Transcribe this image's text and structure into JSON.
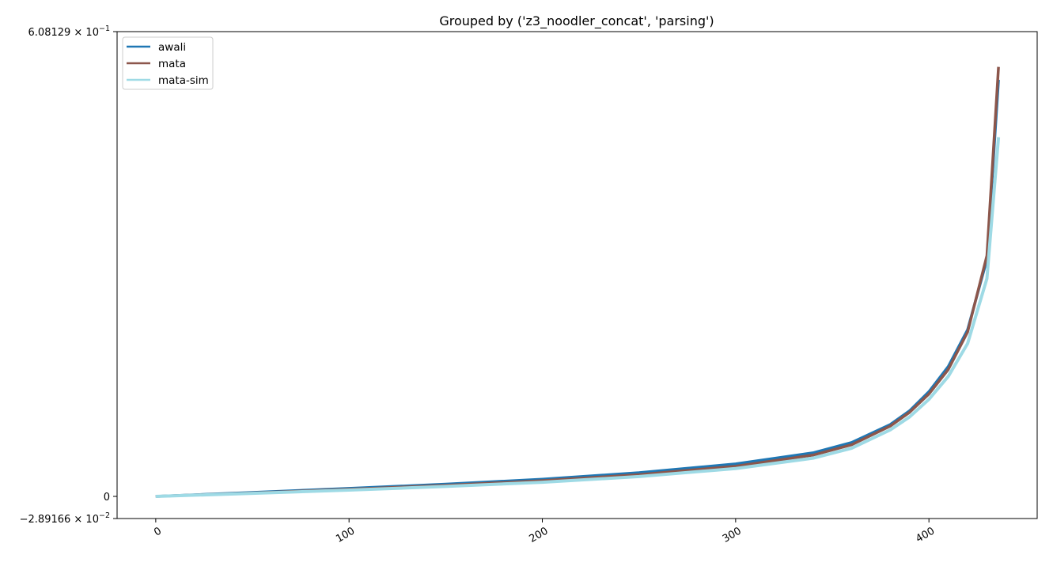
{
  "chart_data": {
    "type": "line",
    "title": "Grouped by ('z3_noodler_concat', 'parsing')",
    "xlabel": "",
    "ylabel": "",
    "xlim": [
      -20,
      456
    ],
    "ylim": [
      -0.0289166,
      0.608129
    ],
    "yscale": "symlog",
    "grid": false,
    "legend_position": "top-left",
    "x_ticks": [
      0,
      100,
      200,
      300,
      400
    ],
    "x_tick_labels": [
      "0",
      "100",
      "200",
      "300",
      "400"
    ],
    "y_ticks": [
      {
        "value": 0.608129,
        "mantissa": "6.08129",
        "exponent": "−1"
      },
      {
        "value": 0,
        "mantissa": "0",
        "exponent": ""
      },
      {
        "value": -0.0289166,
        "mantissa": "−2.89166",
        "exponent": "−2"
      }
    ],
    "series": [
      {
        "name": "awali",
        "color": "#1f77b4",
        "x": [
          0,
          50,
          100,
          150,
          200,
          250,
          300,
          340,
          360,
          380,
          390,
          400,
          410,
          420,
          430,
          436
        ],
        "y": [
          0.0,
          0.0052,
          0.0105,
          0.016,
          0.0225,
          0.031,
          0.0425,
          0.057,
          0.0705,
          0.094,
          0.112,
          0.137,
          0.17,
          0.218,
          0.31,
          0.545
        ]
      },
      {
        "name": "mata",
        "color": "#8c564b",
        "x": [
          0,
          50,
          100,
          150,
          200,
          250,
          300,
          340,
          360,
          380,
          390,
          400,
          410,
          420,
          430,
          436
        ],
        "y": [
          0.0,
          0.0045,
          0.0093,
          0.0145,
          0.0205,
          0.0285,
          0.0395,
          0.054,
          0.0675,
          0.092,
          0.11,
          0.134,
          0.166,
          0.215,
          0.315,
          0.562
        ]
      },
      {
        "name": "mata-sim",
        "color": "#9edae5",
        "x": [
          0,
          50,
          100,
          150,
          200,
          250,
          300,
          340,
          360,
          380,
          390,
          400,
          410,
          420,
          430,
          436
        ],
        "y": [
          0.0,
          0.004,
          0.0083,
          0.013,
          0.0185,
          0.026,
          0.0365,
          0.05,
          0.063,
          0.087,
          0.104,
          0.127,
          0.157,
          0.2,
          0.285,
          0.47
        ]
      }
    ]
  }
}
